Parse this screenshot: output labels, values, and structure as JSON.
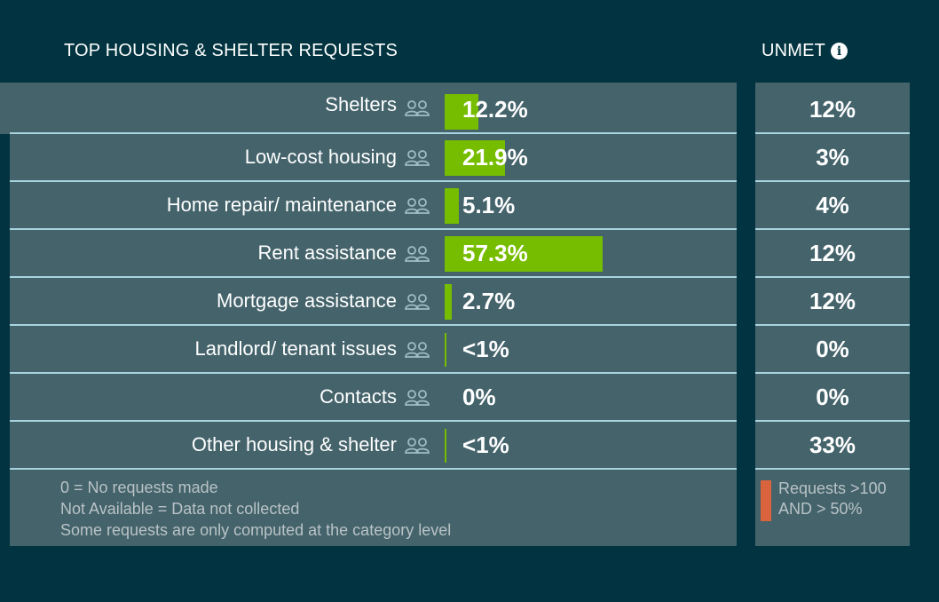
{
  "header": {
    "left_title": "TOP HOUSING & SHELTER REQUESTS",
    "right_title": "UNMET",
    "info_glyph": "i"
  },
  "rows": [
    {
      "label": "Shelters",
      "value": "12.2%",
      "pct": 12.2,
      "unmet": "12%"
    },
    {
      "label": "Low-cost housing",
      "value": "21.9%",
      "pct": 21.9,
      "unmet": "3%"
    },
    {
      "label": "Home repair/ maintenance",
      "value": "5.1%",
      "pct": 5.1,
      "unmet": "4%"
    },
    {
      "label": "Rent assistance",
      "value": "57.3%",
      "pct": 57.3,
      "unmet": "12%"
    },
    {
      "label": "Mortgage assistance",
      "value": "2.7%",
      "pct": 2.7,
      "unmet": "12%"
    },
    {
      "label": "Landlord/ tenant issues",
      "value": "<1%",
      "pct": 0.4,
      "unmet": "0%"
    },
    {
      "label": "Contacts",
      "value": "0%",
      "pct": 0,
      "unmet": "0%"
    },
    {
      "label": "Other housing & shelter",
      "value": "<1%",
      "pct": 0.4,
      "unmet": "33%"
    }
  ],
  "footnotes": {
    "line1": "0 = No requests made",
    "line2": "Not Available = Data not collected",
    "line3": "Some requests are only computed at the category level"
  },
  "legend": {
    "line1": "Requests >100",
    "line2": "AND > 50%"
  },
  "colors": {
    "background": "#013440",
    "panel": "#44636b",
    "bar": "#76bd00",
    "divider": "#a8d4e0",
    "legend_swatch": "#d9633c",
    "muted_text": "#b9c3c6"
  },
  "icons": {
    "row_icon": "people-icon",
    "header_icon": "info-icon"
  }
}
